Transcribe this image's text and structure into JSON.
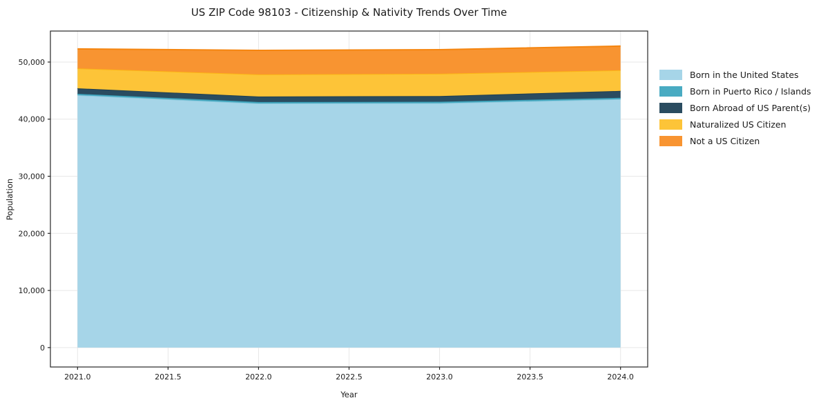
{
  "chart_data": {
    "type": "area",
    "stacked": true,
    "title": "US ZIP Code 98103 - Citizenship & Nativity Trends Over Time",
    "xlabel": "Year",
    "ylabel": "Population",
    "x": [
      2021,
      2022,
      2023,
      2024
    ],
    "series": [
      {
        "name": "Born in the United States",
        "fill": "#A6D5E8",
        "edge": "#8FCADF",
        "values": [
          44200,
          42750,
          42800,
          43500
        ]
      },
      {
        "name": "Born in Puerto Rico / Islands",
        "fill": "#49ABC2",
        "edge": "#3AA0B8",
        "values": [
          240,
          250,
          250,
          240
        ]
      },
      {
        "name": "Born Abroad of US Parent(s)",
        "fill": "#2A4C60",
        "edge": "#203F50",
        "values": [
          960,
          960,
          1000,
          1210
        ]
      },
      {
        "name": "Naturalized US Citizen",
        "fill": "#FDC438",
        "edge": "#FCB615",
        "values": [
          3500,
          3870,
          3900,
          3620
        ]
      },
      {
        "name": "Not a US Citizen",
        "fill": "#F89431",
        "edge": "#F5850F",
        "values": [
          3400,
          4220,
          4220,
          4230
        ]
      }
    ],
    "totals_by_year": [
      52300,
      52050,
      52170,
      52800
    ],
    "xticks": [
      2021.0,
      2021.5,
      2022.0,
      2022.5,
      2023.0,
      2023.5,
      2024.0
    ],
    "xtick_labels": [
      "2021.0",
      "2021.5",
      "2022.0",
      "2022.5",
      "2023.0",
      "2023.5",
      "2024.0"
    ],
    "yticks": [
      0,
      10000,
      20000,
      30000,
      40000,
      50000
    ],
    "ytick_labels": [
      "0",
      "10,000",
      "20,000",
      "30,000",
      "40,000",
      "50,000"
    ],
    "xlim": [
      2020.85,
      2024.15
    ],
    "ylim": [
      -3400,
      55430
    ],
    "grid": true,
    "legend_position": "right-outside",
    "grid_color": "#e7e7e7",
    "spine_color": "#262626",
    "tick_label_color": "#1a1a1a"
  }
}
